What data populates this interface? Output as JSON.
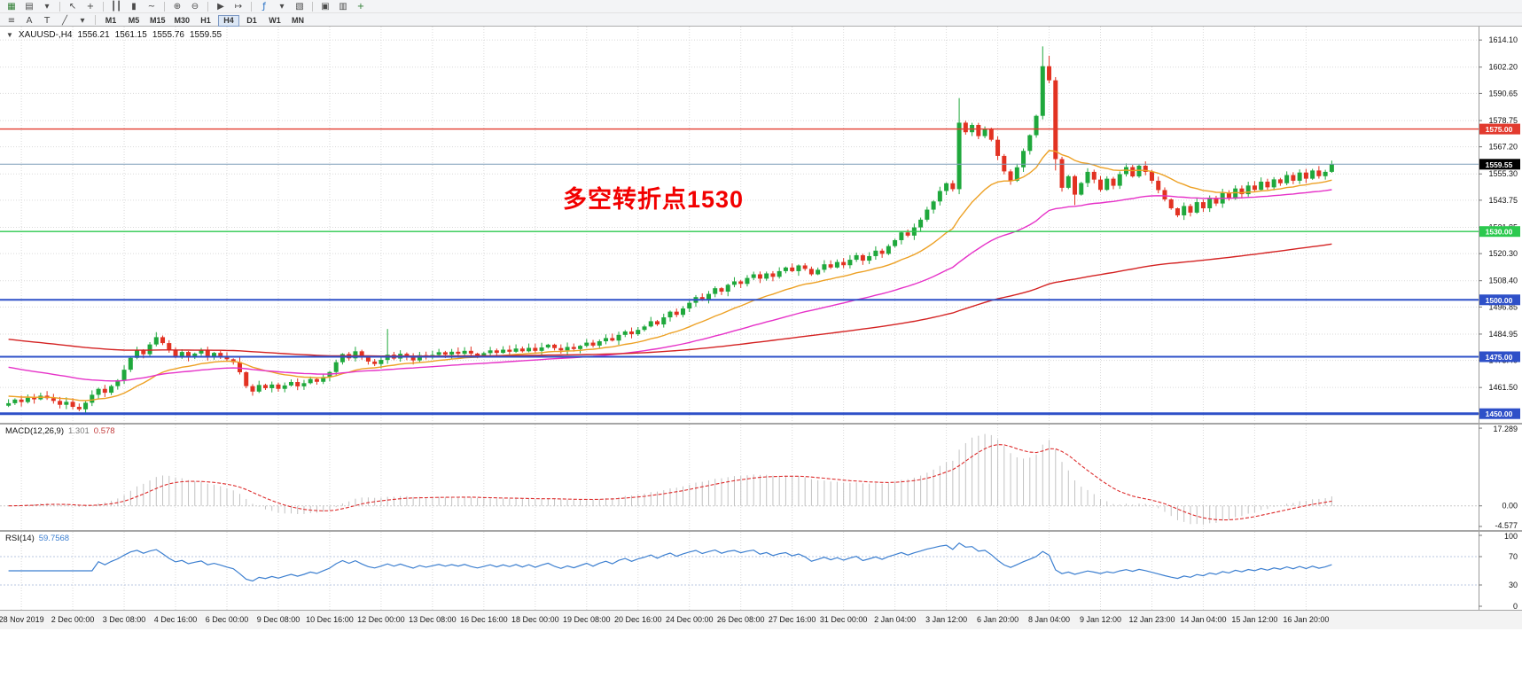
{
  "toolbar": {
    "row1": [
      {
        "name": "new-chart-button",
        "glyph": "▦",
        "color": "#2e7d32"
      },
      {
        "name": "chart-profiles-button",
        "glyph": "▤"
      },
      {
        "name": "profiles-dropdown",
        "glyph": "▾"
      },
      {
        "sep": true
      },
      {
        "name": "cursor-icon",
        "glyph": "↖"
      },
      {
        "name": "crosshair-icon",
        "glyph": "+"
      },
      {
        "sep": true
      },
      {
        "name": "bar-chart-button",
        "glyph": "┃┃"
      },
      {
        "name": "candlestick-chart-button",
        "glyph": "▮"
      },
      {
        "name": "line-chart-button",
        "glyph": "~"
      },
      {
        "sep": true
      },
      {
        "name": "zoom-in-button",
        "glyph": "⊕"
      },
      {
        "name": "zoom-out-button",
        "glyph": "⊖"
      },
      {
        "sep": true
      },
      {
        "name": "auto-scroll-button",
        "glyph": "▶"
      },
      {
        "name": "chart-shift-button",
        "glyph": "↦"
      },
      {
        "sep": true
      },
      {
        "name": "indicators-button",
        "glyph": "ƒ",
        "color": "#1565c0"
      },
      {
        "name": "indicators-dropdown",
        "glyph": "▾"
      },
      {
        "name": "templates-button",
        "glyph": "▧"
      },
      {
        "sep": true
      },
      {
        "name": "cascade-windows-button",
        "glyph": "▣"
      },
      {
        "name": "tile-windows-button",
        "glyph": "▥"
      },
      {
        "name": "new-order-button",
        "glyph": "+",
        "color": "#2e7d32"
      }
    ],
    "row2_icons": [
      {
        "name": "charts-list-button",
        "glyph": "≡"
      },
      {
        "name": "insert-text-button",
        "glyph": "A"
      },
      {
        "name": "insert-label-button",
        "glyph": "T"
      },
      {
        "name": "line-studies-button",
        "glyph": "╱"
      },
      {
        "name": "line-studies-dropdown",
        "glyph": "▾"
      }
    ],
    "timeframes": [
      {
        "label": "M1"
      },
      {
        "label": "M5"
      },
      {
        "label": "M15"
      },
      {
        "label": "M30"
      },
      {
        "label": "H1"
      },
      {
        "label": "H4",
        "active": true
      },
      {
        "label": "D1"
      },
      {
        "label": "W1"
      },
      {
        "label": "MN"
      }
    ]
  },
  "header": {
    "collapse_glyph": "▼",
    "symbol": "XAUUSD-,H4",
    "open": "1556.21",
    "high": "1561.15",
    "low": "1555.76",
    "close": "1559.55"
  },
  "annotation": {
    "text": "多空转折点1530",
    "color": "#f20000"
  },
  "panels": {
    "macd": {
      "label": "MACD(12,26,9)",
      "value_main": "1.301",
      "value_signal": "0.578"
    },
    "rsi": {
      "label": "RSI(14)",
      "value": "59.7568"
    }
  },
  "chart_data": {
    "type": "candlestick",
    "symbol": "XAUUSD",
    "timeframe": "H4",
    "title": "XAUUSD-,H4",
    "ylim": [
      1446,
      1620
    ],
    "price_ticks": [
      1614.1,
      1602.2,
      1590.65,
      1578.75,
      1567.2,
      1555.3,
      1543.75,
      1531.85,
      1520.3,
      1508.4,
      1496.85,
      1484.95,
      1473.4,
      1461.5,
      1449.95
    ],
    "x_labels": [
      {
        "i": 2,
        "t": "28 Nov 2019"
      },
      {
        "i": 10,
        "t": "2 Dec 00:00"
      },
      {
        "i": 18,
        "t": "3 Dec 08:00"
      },
      {
        "i": 26,
        "t": "4 Dec 16:00"
      },
      {
        "i": 34,
        "t": "6 Dec 00:00"
      },
      {
        "i": 42,
        "t": "9 Dec 08:00"
      },
      {
        "i": 50,
        "t": "10 Dec 16:00"
      },
      {
        "i": 58,
        "t": "12 Dec 00:00"
      },
      {
        "i": 66,
        "t": "13 Dec 08:00"
      },
      {
        "i": 74,
        "t": "16 Dec 16:00"
      },
      {
        "i": 82,
        "t": "18 Dec 00:00"
      },
      {
        "i": 90,
        "t": "19 Dec 08:00"
      },
      {
        "i": 98,
        "t": "20 Dec 16:00"
      },
      {
        "i": 106,
        "t": "24 Dec 00:00"
      },
      {
        "i": 114,
        "t": "26 Dec 08:00"
      },
      {
        "i": 122,
        "t": "27 Dec 16:00"
      },
      {
        "i": 130,
        "t": "31 Dec 00:00"
      },
      {
        "i": 138,
        "t": "2 Jan 04:00"
      },
      {
        "i": 146,
        "t": "3 Jan 12:00"
      },
      {
        "i": 154,
        "t": "6 Jan 20:00"
      },
      {
        "i": 162,
        "t": "8 Jan 04:00"
      },
      {
        "i": 170,
        "t": "9 Jan 12:00"
      },
      {
        "i": 178,
        "t": "12 Jan 23:00"
      },
      {
        "i": 186,
        "t": "14 Jan 04:00"
      },
      {
        "i": 194,
        "t": "15 Jan 12:00"
      },
      {
        "i": 202,
        "t": "16 Jan 20:00"
      }
    ],
    "candles": {
      "closes": [
        1454.6,
        1456.2,
        1455.1,
        1457.0,
        1456.3,
        1457.9,
        1456.8,
        1455.6,
        1453.9,
        1455.2,
        1453.0,
        1451.9,
        1454.8,
        1458.3,
        1460.9,
        1459.2,
        1462.1,
        1464.7,
        1469.3,
        1474.5,
        1477.8,
        1476.1,
        1480.4,
        1483.6,
        1481.0,
        1477.8,
        1475.2,
        1477.1,
        1474.6,
        1476.4,
        1478.0,
        1475.1,
        1476.7,
        1475.4,
        1473.9,
        1472.6,
        1468.2,
        1462.1,
        1459.7,
        1462.6,
        1461.2,
        1462.8,
        1460.9,
        1462.4,
        1463.9,
        1462.0,
        1463.4,
        1465.2,
        1464.0,
        1466.1,
        1468.3,
        1472.6,
        1476.2,
        1474.3,
        1477.4,
        1475.0,
        1472.9,
        1471.8,
        1473.6,
        1475.9,
        1474.2,
        1476.3,
        1474.8,
        1473.4,
        1475.7,
        1474.6,
        1475.8,
        1477.0,
        1475.9,
        1477.2,
        1476.3,
        1477.6,
        1476.4,
        1475.6,
        1476.6,
        1477.8,
        1476.7,
        1478.1,
        1477.2,
        1478.6,
        1477.4,
        1478.9,
        1477.6,
        1479.1,
        1480.3,
        1478.8,
        1477.8,
        1479.3,
        1478.4,
        1479.8,
        1481.2,
        1479.9,
        1481.8,
        1483.2,
        1482.1,
        1484.6,
        1486.1,
        1484.9,
        1486.8,
        1488.3,
        1490.6,
        1489.2,
        1492.3,
        1494.8,
        1493.4,
        1496.2,
        1498.7,
        1501.2,
        1499.8,
        1502.6,
        1505.1,
        1503.6,
        1506.6,
        1508.1,
        1507.0,
        1509.6,
        1511.2,
        1509.3,
        1511.6,
        1510.1,
        1512.6,
        1514.2,
        1512.6,
        1515.1,
        1513.6,
        1511.2,
        1513.2,
        1515.6,
        1514.2,
        1516.6,
        1515.2,
        1517.6,
        1519.6,
        1517.2,
        1519.2,
        1521.6,
        1520.2,
        1523.6,
        1526.2,
        1529.6,
        1528.2,
        1531.8,
        1535.2,
        1539.6,
        1543.2,
        1547.8,
        1551.2,
        1548.6,
        1577.8,
        1573.6,
        1576.8,
        1571.9,
        1575.2,
        1570.3,
        1563.2,
        1556.4,
        1552.3,
        1558.2,
        1565.4,
        1572.3,
        1580.8,
        1602.6,
        1596.4,
        1561.8,
        1549.2,
        1554.3,
        1546.2,
        1551.3,
        1556.2,
        1552.8,
        1548.3,
        1553.2,
        1550.1,
        1555.2,
        1558.3,
        1554.2,
        1558.9,
        1556.2,
        1552.3,
        1548.2,
        1544.1,
        1540.2,
        1537.1,
        1541.2,
        1538.3,
        1542.9,
        1540.2,
        1544.8,
        1542.3,
        1546.9,
        1544.4,
        1548.9,
        1546.4,
        1550.2,
        1548.3,
        1551.9,
        1549.4,
        1552.9,
        1551.2,
        1554.8,
        1552.3,
        1555.9,
        1553.2,
        1556.8,
        1554.3,
        1556.21,
        1559.55
      ],
      "overrides": {
        "23": {
          "h": 1485.8
        },
        "38": {
          "l": 1457.9
        },
        "59": {
          "h": 1487.2
        },
        "148": {
          "h": 1588.6,
          "l": 1546.4
        },
        "161": {
          "h": 1611.3
        },
        "162": {
          "h": 1607.2
        },
        "163": {
          "l": 1556.8
        },
        "166": {
          "l": 1541.6
        },
        "206": {
          "h": 1561.15,
          "l": 1555.76
        }
      }
    },
    "levels": [
      {
        "price": 1575.0,
        "label": "1575.00",
        "color": "#e23a2e",
        "width": 1.4
      },
      {
        "price": 1530.0,
        "label": "1530.00",
        "color": "#2bc94e",
        "width": 1.4
      },
      {
        "price": 1500.0,
        "label": "1500.00",
        "color": "#2e50c8",
        "width": 2
      },
      {
        "price": 1475.0,
        "label": "1475.00",
        "color": "#2e50c8",
        "width": 2
      },
      {
        "price": 1450.0,
        "label": "1450.00",
        "color": "#2e50c8",
        "width": 3
      }
    ],
    "bid": {
      "price": 1559.55,
      "label": "1559.55",
      "line_color": "#7f9db9",
      "badge_color": "#000000"
    },
    "moving_averages": [
      {
        "name": "ma-fast-orange",
        "color": "#eda125",
        "period": 20,
        "seed": 1458
      },
      {
        "name": "ma-mid-magenta",
        "color": "#e632c8",
        "period": 55,
        "seed": 1471
      },
      {
        "name": "ma-slow-red",
        "color": "#d42222",
        "period": 170,
        "seed": 1483
      }
    ],
    "indicators": {
      "macd": {
        "fast": 12,
        "slow": 26,
        "signal": 9,
        "scale_labels": [
          {
            "v": 17.289,
            "t": "17.289"
          },
          {
            "v": 0,
            "t": "0.00"
          },
          {
            "v": -4.577,
            "t": "-4.577"
          }
        ]
      },
      "rsi": {
        "period": 14,
        "levels": [
          70,
          30
        ],
        "scale_labels": [
          {
            "v": 100,
            "t": "100"
          },
          {
            "v": 70,
            "t": "70"
          },
          {
            "v": 30,
            "t": "30"
          },
          {
            "v": 0,
            "t": "0"
          }
        ]
      }
    },
    "colors": {
      "up": "#1fa83c",
      "down": "#e23222",
      "grid": "#dadada",
      "macd_hist": "#c2c2c2",
      "macd_signal": "#dd2c2c",
      "rsi_line": "#3c7fd0",
      "rsi_levels": "#b9c7e0"
    }
  }
}
